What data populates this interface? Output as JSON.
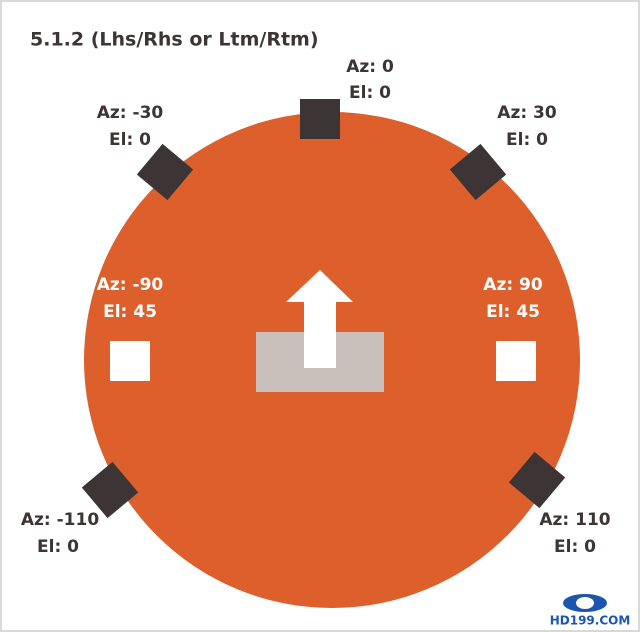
{
  "title": "5.1.2 (Lhs/Rhs or Ltm/Rtm)",
  "speakers": [
    {
      "azimuth": "Az: 0",
      "elevation": "El: 0"
    },
    {
      "azimuth": "Az: -30",
      "elevation": "El: 0"
    },
    {
      "azimuth": "Az: 30",
      "elevation": "El: 0"
    },
    {
      "azimuth": "Az: -90",
      "elevation": "El: 45"
    },
    {
      "azimuth": "Az: 90",
      "elevation": "El: 45"
    },
    {
      "azimuth": "Az: -110",
      "elevation": "El: 0"
    },
    {
      "azimuth": "Az: 110",
      "elevation": "El: 0"
    }
  ],
  "watermark": "HD199.COM"
}
